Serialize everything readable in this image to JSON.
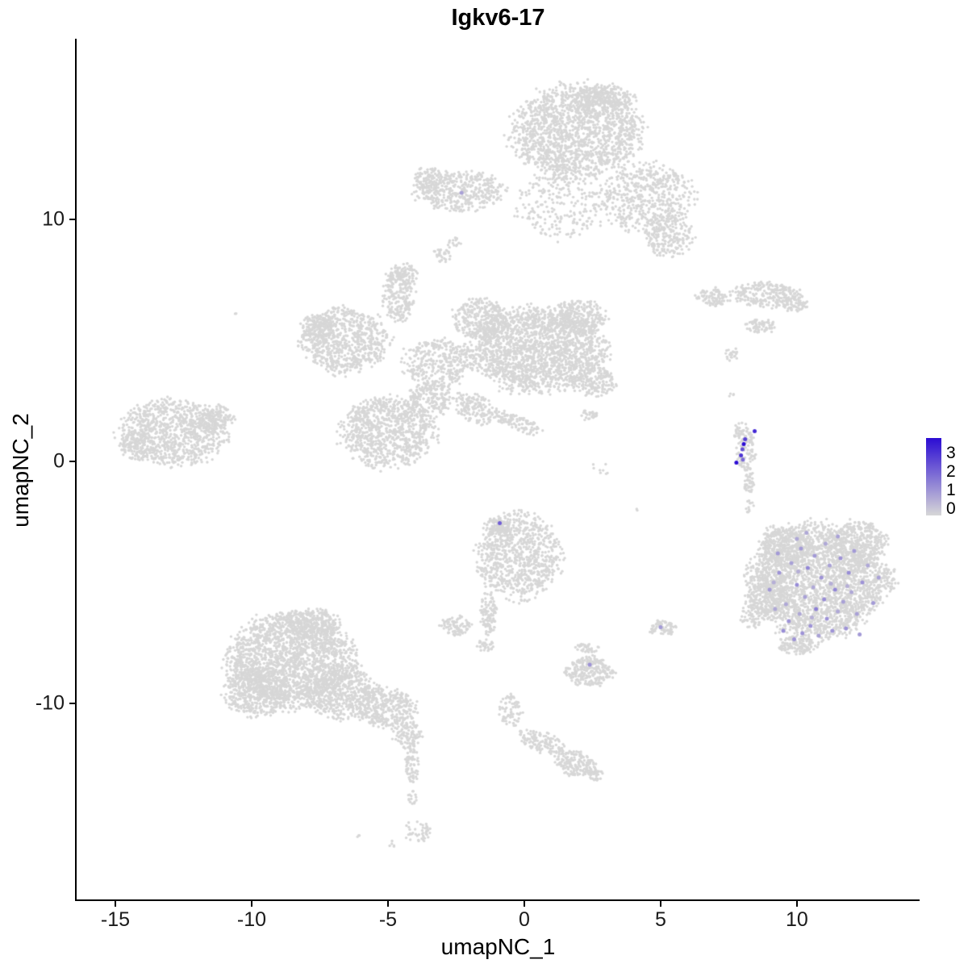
{
  "chart_data": {
    "type": "scatter",
    "title": "Igkv6-17",
    "xlabel": "umapNC_1",
    "ylabel": "umapNC_2",
    "xlim": [
      -16.42,
      14.5
    ],
    "ylim": [
      -18.1,
      17.47
    ],
    "xticks": {
      "values": [
        -15,
        -10,
        -5,
        0,
        5,
        10
      ],
      "labels": [
        "-15",
        "-10",
        "-5",
        "0",
        "5",
        "10"
      ]
    },
    "yticks": {
      "values": [
        10,
        0,
        -10
      ],
      "labels": [
        "10",
        "0",
        "-10"
      ]
    },
    "grid": false,
    "legend": {
      "position": "right",
      "labels": [
        "3",
        "2",
        "1",
        "0"
      ],
      "max": 3
    },
    "colors": {
      "base": "#d7d7d7",
      "low": "#d7d7d7",
      "high": "#2b0cd3"
    },
    "point_radius": 1.7,
    "expression_point_radius": 2.5,
    "background_clusters": [
      {
        "cx": 1.9,
        "cy": 13.6,
        "rx": 2.3,
        "ry": 1.9,
        "n": 1600
      },
      {
        "cx": 2.9,
        "cy": 15.0,
        "rx": 1.1,
        "ry": 0.6,
        "n": 250
      },
      {
        "cx": 4.5,
        "cy": 10.9,
        "rx": 1.7,
        "ry": 1.4,
        "n": 550
      },
      {
        "cx": 5.3,
        "cy": 9.3,
        "rx": 0.9,
        "ry": 0.8,
        "n": 200
      },
      {
        "cx": 1.3,
        "cy": 10.6,
        "rx": 1.6,
        "ry": 1.4,
        "n": 240
      },
      {
        "cx": -2.4,
        "cy": 11.2,
        "rx": 1.6,
        "ry": 0.8,
        "n": 420
      },
      {
        "cx": -3.5,
        "cy": 11.7,
        "rx": 0.55,
        "ry": 0.5,
        "n": 90
      },
      {
        "cx": -3.0,
        "cy": 8.5,
        "rx": 0.35,
        "ry": 0.3,
        "n": 30
      },
      {
        "cx": -2.6,
        "cy": 9.0,
        "rx": 0.25,
        "ry": 0.25,
        "n": 15
      },
      {
        "cx": -6.6,
        "cy": 5.0,
        "rx": 1.6,
        "ry": 1.3,
        "n": 750
      },
      {
        "cx": -7.6,
        "cy": 5.5,
        "rx": 0.6,
        "ry": 0.6,
        "n": 120
      },
      {
        "cx": -4.6,
        "cy": 6.9,
        "rx": 0.55,
        "ry": 1.1,
        "n": 220
      },
      {
        "cx": -4.4,
        "cy": 7.8,
        "rx": 0.45,
        "ry": 0.4,
        "n": 70
      },
      {
        "cx": 0.5,
        "cy": 4.6,
        "rx": 2.4,
        "ry": 1.7,
        "n": 1900
      },
      {
        "cx": 2.0,
        "cy": 6.0,
        "rx": 1.0,
        "ry": 0.7,
        "n": 250
      },
      {
        "cx": -1.6,
        "cy": 5.9,
        "rx": 1.0,
        "ry": 0.8,
        "n": 300
      },
      {
        "cx": -3.2,
        "cy": 4.1,
        "rx": 1.3,
        "ry": 1.0,
        "n": 350
      },
      {
        "cx": -5.0,
        "cy": 1.2,
        "rx": 1.7,
        "ry": 1.4,
        "n": 900
      },
      {
        "cx": -3.4,
        "cy": 2.6,
        "rx": 0.8,
        "ry": 0.7,
        "n": 200
      },
      {
        "cx": -1.8,
        "cy": 2.2,
        "rx": 0.8,
        "ry": 0.55,
        "n": 150,
        "rot": -35
      },
      {
        "cx": -0.3,
        "cy": 1.6,
        "rx": 1.0,
        "ry": 0.3,
        "n": 110,
        "rot": -25
      },
      {
        "cx": 2.6,
        "cy": 3.3,
        "rx": 0.8,
        "ry": 0.6,
        "n": 160
      },
      {
        "cx": 2.4,
        "cy": 1.9,
        "rx": 0.3,
        "ry": 0.25,
        "n": 25
      },
      {
        "cx": -12.9,
        "cy": 1.2,
        "rx": 1.9,
        "ry": 1.3,
        "n": 950
      },
      {
        "cx": -11.3,
        "cy": 1.8,
        "rx": 0.7,
        "ry": 0.5,
        "n": 120
      },
      {
        "cx": -14.2,
        "cy": 0.6,
        "rx": 0.6,
        "ry": 0.6,
        "n": 100
      },
      {
        "cx": 8.1,
        "cy": 0.5,
        "rx": 0.35,
        "ry": 1.1,
        "n": 130,
        "rot": 8
      },
      {
        "cx": 8.25,
        "cy": -0.9,
        "rx": 0.2,
        "ry": 0.45,
        "n": 35
      },
      {
        "cx": 8.3,
        "cy": -1.9,
        "rx": 0.15,
        "ry": 0.3,
        "n": 12
      },
      {
        "cx": 7.0,
        "cy": 6.8,
        "rx": 0.65,
        "ry": 0.35,
        "n": 90
      },
      {
        "cx": 8.9,
        "cy": 6.9,
        "rx": 1.25,
        "ry": 0.5,
        "n": 240
      },
      {
        "cx": 9.9,
        "cy": 6.5,
        "rx": 0.5,
        "ry": 0.3,
        "n": 60
      },
      {
        "cx": 8.7,
        "cy": 5.6,
        "rx": 0.55,
        "ry": 0.3,
        "n": 70
      },
      {
        "cx": 7.6,
        "cy": 4.4,
        "rx": 0.25,
        "ry": 0.3,
        "n": 20
      },
      {
        "cx": -0.2,
        "cy": -3.9,
        "rx": 1.5,
        "ry": 1.7,
        "n": 850
      },
      {
        "cx": -1.0,
        "cy": -2.7,
        "rx": 0.5,
        "ry": 0.4,
        "n": 90
      },
      {
        "cx": -1.3,
        "cy": -6.3,
        "rx": 0.3,
        "ry": 0.9,
        "n": 110
      },
      {
        "cx": -2.5,
        "cy": -6.8,
        "rx": 0.55,
        "ry": 0.4,
        "n": 90
      },
      {
        "cx": -1.4,
        "cy": -7.6,
        "rx": 0.3,
        "ry": 0.25,
        "n": 30
      },
      {
        "cx": -8.5,
        "cy": -8.2,
        "rx": 2.3,
        "ry": 1.9,
        "n": 2000
      },
      {
        "cx": -9.8,
        "cy": -9.5,
        "rx": 1.2,
        "ry": 1.0,
        "n": 450
      },
      {
        "cx": -6.7,
        "cy": -9.6,
        "rx": 1.3,
        "ry": 1.0,
        "n": 500
      },
      {
        "cx": -7.8,
        "cy": -6.7,
        "rx": 1.0,
        "ry": 0.6,
        "n": 250
      },
      {
        "cx": -5.1,
        "cy": -10.2,
        "rx": 1.1,
        "ry": 0.8,
        "n": 330
      },
      {
        "cx": -4.3,
        "cy": -11.3,
        "rx": 0.5,
        "ry": 0.6,
        "n": 110
      },
      {
        "cx": -4.1,
        "cy": -12.5,
        "rx": 0.25,
        "ry": 0.8,
        "n": 70
      },
      {
        "cx": -4.1,
        "cy": -13.9,
        "rx": 0.2,
        "ry": 0.3,
        "n": 15
      },
      {
        "cx": -3.9,
        "cy": -15.3,
        "rx": 0.45,
        "ry": 0.45,
        "n": 45
      },
      {
        "cx": -4.9,
        "cy": -15.8,
        "rx": 0.15,
        "ry": 0.15,
        "n": 5
      },
      {
        "cx": -6.1,
        "cy": -15.5,
        "rx": 0.1,
        "ry": 0.1,
        "n": 3
      },
      {
        "cx": 2.4,
        "cy": -8.7,
        "rx": 0.85,
        "ry": 0.6,
        "n": 260
      },
      {
        "cx": 2.3,
        "cy": -7.7,
        "rx": 0.45,
        "ry": 0.2,
        "n": 35
      },
      {
        "cx": -0.5,
        "cy": -10.3,
        "rx": 0.4,
        "ry": 0.7,
        "n": 70
      },
      {
        "cx": 0.6,
        "cy": -11.6,
        "rx": 0.9,
        "ry": 0.4,
        "n": 130,
        "rot": -20
      },
      {
        "cx": 1.9,
        "cy": -12.5,
        "rx": 0.75,
        "ry": 0.5,
        "n": 170,
        "rot": -18
      },
      {
        "cx": 2.6,
        "cy": -12.9,
        "rx": 0.3,
        "ry": 0.3,
        "n": 40
      },
      {
        "cx": 5.1,
        "cy": -6.9,
        "rx": 0.5,
        "ry": 0.32,
        "n": 80
      },
      {
        "cx": 10.7,
        "cy": -5.0,
        "rx": 2.4,
        "ry": 2.3,
        "n": 2400
      },
      {
        "cx": 12.2,
        "cy": -3.4,
        "rx": 1.1,
        "ry": 0.9,
        "n": 350
      },
      {
        "cx": 9.6,
        "cy": -3.5,
        "rx": 0.9,
        "ry": 0.8,
        "n": 300
      },
      {
        "cx": 8.9,
        "cy": -5.5,
        "rx": 0.7,
        "ry": 1.0,
        "n": 220
      },
      {
        "cx": 8.3,
        "cy": -6.3,
        "rx": 0.4,
        "ry": 0.6,
        "n": 60
      },
      {
        "cx": 10.0,
        "cy": -7.6,
        "rx": 0.7,
        "ry": 0.4,
        "n": 130
      },
      {
        "cx": 13.3,
        "cy": -4.9,
        "rx": 0.45,
        "ry": 0.5,
        "n": 70
      },
      {
        "cx": 9.1,
        "cy": -2.9,
        "rx": 0.3,
        "ry": 0.25,
        "n": 25
      },
      {
        "cx": -10.6,
        "cy": 6.1,
        "rx": 0.05,
        "ry": 0.05,
        "n": 2
      },
      {
        "cx": 4.1,
        "cy": -2.0,
        "rx": 0.06,
        "ry": 0.06,
        "n": 2
      },
      {
        "cx": 2.6,
        "cy": -0.4,
        "rx": 0.5,
        "ry": 0.5,
        "n": 8
      },
      {
        "cx": 7.6,
        "cy": 2.7,
        "rx": 0.15,
        "ry": 0.15,
        "n": 4
      }
    ],
    "expression_points": [
      [
        -2.3,
        11.1,
        0.8
      ],
      [
        8.45,
        1.25,
        2.6
      ],
      [
        8.1,
        0.92,
        2.2
      ],
      [
        8.05,
        0.72,
        3.0
      ],
      [
        8.0,
        0.5,
        2.0
      ],
      [
        7.95,
        0.25,
        2.4
      ],
      [
        7.78,
        -0.05,
        3.0
      ],
      [
        8.02,
        0.08,
        1.6
      ],
      [
        -0.9,
        -2.55,
        1.8
      ],
      [
        2.4,
        -8.4,
        1.0
      ],
      [
        5.0,
        -6.85,
        0.9
      ],
      [
        9.0,
        -5.3,
        0.9
      ],
      [
        9.2,
        -6.1,
        0.7
      ],
      [
        9.35,
        -4.6,
        1.0
      ],
      [
        9.5,
        -7.0,
        1.1
      ],
      [
        9.6,
        -5.9,
        0.7
      ],
      [
        9.7,
        -6.6,
        1.0
      ],
      [
        9.8,
        -4.2,
        0.8
      ],
      [
        9.9,
        -7.35,
        1.0
      ],
      [
        10.0,
        -5.1,
        1.1
      ],
      [
        10.1,
        -6.3,
        0.7
      ],
      [
        10.15,
        -3.6,
        0.9
      ],
      [
        10.2,
        -7.1,
        1.0
      ],
      [
        10.3,
        -5.6,
        0.8
      ],
      [
        10.4,
        -4.4,
        1.2
      ],
      [
        10.5,
        -6.8,
        1.0
      ],
      [
        10.6,
        -5.2,
        0.7
      ],
      [
        10.65,
        -3.9,
        0.9
      ],
      [
        10.7,
        -6.1,
        1.3
      ],
      [
        10.8,
        -7.2,
        0.8
      ],
      [
        10.9,
        -4.8,
        1.0
      ],
      [
        11.0,
        -5.7,
        1.1
      ],
      [
        11.05,
        -3.4,
        0.7
      ],
      [
        11.1,
        -6.5,
        1.0
      ],
      [
        11.2,
        -4.3,
        0.8
      ],
      [
        11.3,
        -7.0,
        1.0
      ],
      [
        11.4,
        -5.3,
        1.2
      ],
      [
        11.5,
        -6.2,
        0.7
      ],
      [
        11.6,
        -4.0,
        1.0
      ],
      [
        11.7,
        -5.8,
        0.8
      ],
      [
        11.8,
        -6.9,
        1.0
      ],
      [
        11.9,
        -4.6,
        1.1
      ],
      [
        12.0,
        -5.4,
        0.7
      ],
      [
        12.1,
        -3.7,
        0.9
      ],
      [
        12.2,
        -6.3,
        0.8
      ],
      [
        12.4,
        -5.0,
        1.0
      ],
      [
        12.6,
        -4.3,
        0.7
      ],
      [
        12.8,
        -5.85,
        0.9
      ],
      [
        13.0,
        -4.8,
        0.8
      ],
      [
        9.3,
        -3.8,
        0.9
      ],
      [
        10.0,
        -3.2,
        0.7
      ],
      [
        11.5,
        -3.1,
        0.8
      ],
      [
        12.3,
        -7.15,
        0.9
      ],
      [
        10.35,
        -2.95,
        0.7
      ],
      [
        9.15,
        -5.0,
        0.6
      ],
      [
        11.25,
        -5.05,
        0.6
      ],
      [
        10.05,
        -4.55,
        0.6
      ],
      [
        10.55,
        -6.45,
        0.6
      ],
      [
        11.85,
        -5.15,
        0.6
      ]
    ]
  }
}
